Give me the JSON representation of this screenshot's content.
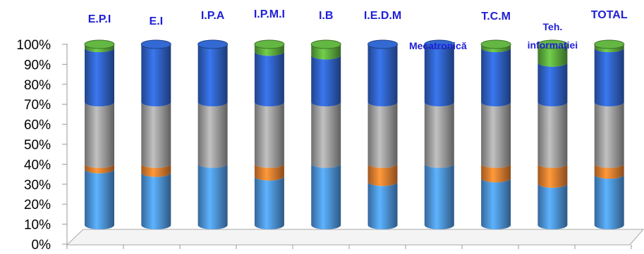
{
  "chart_data": {
    "type": "bar",
    "stacked": true,
    "style": "3d-cylinder",
    "title": "",
    "xlabel": "",
    "ylabel": "",
    "ylim": [
      0,
      100
    ],
    "y_ticks": [
      "0%",
      "10%",
      "20%",
      "30%",
      "40%",
      "50%",
      "60%",
      "70%",
      "80%",
      "90%",
      "100%"
    ],
    "grid": false,
    "legend": "none",
    "categories": [
      [
        "E.P.I"
      ],
      [
        "E.I"
      ],
      [
        "I.P.A"
      ],
      [
        "I.P.M.I"
      ],
      [
        "I.B"
      ],
      [
        "I.E.D.M"
      ],
      [
        "Mecatronică"
      ],
      [
        "T.C.M"
      ],
      [
        "Teh.",
        "informației"
      ],
      [
        "TOTAL"
      ]
    ],
    "series": [
      {
        "color": "#4a8fd6",
        "values": [
          31,
          29,
          34,
          27,
          34,
          24,
          34,
          26,
          23,
          28
        ]
      },
      {
        "color": "#e07a2e",
        "values": [
          3,
          5,
          0,
          7,
          0,
          10,
          0,
          8,
          11,
          6
        ]
      },
      {
        "color": "#9a9a9a",
        "values": [
          34,
          34,
          34,
          34,
          34,
          34,
          34,
          34,
          34,
          34
        ]
      },
      {
        "color": "#2e5fc0",
        "values": [
          30,
          32,
          32,
          28,
          26,
          32,
          32,
          30,
          22,
          30
        ]
      },
      {
        "color": "#5aa63c",
        "values": [
          2,
          0,
          0,
          4,
          6,
          0,
          0,
          2,
          10,
          2
        ]
      }
    ]
  }
}
